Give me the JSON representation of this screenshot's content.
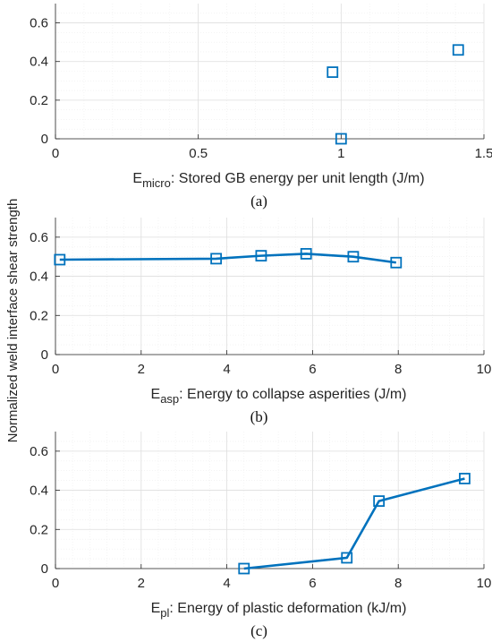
{
  "figure": {
    "shared_ylabel": "Normalized weld interface shear strength",
    "series_color": "#0072BD"
  },
  "chart_data": [
    {
      "type": "scatter",
      "panel_label": "(a)",
      "xlabel_main": "E",
      "xlabel_sub": "micro",
      "xlabel_rest": ": Stored GB energy per unit length (J/m)",
      "xlim": [
        0,
        1.5
      ],
      "ylim": [
        0,
        0.7
      ],
      "xticks": [
        0,
        0.5,
        1,
        1.5
      ],
      "xticklabels": [
        "0",
        "0.5",
        "1",
        "1.5"
      ],
      "yticks": [
        0,
        0.2,
        0.4,
        0.6
      ],
      "yticklabels": [
        "0",
        "0.2",
        "0.4",
        "0.6"
      ],
      "grid": true,
      "minor_grid": true,
      "connected": false,
      "x": [
        0.97,
        1.0,
        1.41
      ],
      "y": [
        0.345,
        0.0,
        0.46
      ]
    },
    {
      "type": "line",
      "panel_label": "(b)",
      "xlabel_main": "E",
      "xlabel_sub": "asp",
      "xlabel_rest": ": Energy to collapse asperities (J/m)",
      "xlim": [
        0,
        10
      ],
      "ylim": [
        0,
        0.7
      ],
      "xticks": [
        0,
        2,
        4,
        6,
        8,
        10
      ],
      "xticklabels": [
        "0",
        "2",
        "4",
        "6",
        "8",
        "10"
      ],
      "yticks": [
        0,
        0.2,
        0.4,
        0.6
      ],
      "yticklabels": [
        "0",
        "0.2",
        "0.4",
        "0.6"
      ],
      "grid": true,
      "minor_grid": true,
      "connected": true,
      "x": [
        0.1,
        3.75,
        4.8,
        5.85,
        6.95,
        7.95
      ],
      "y": [
        0.485,
        0.49,
        0.505,
        0.515,
        0.5,
        0.47
      ]
    },
    {
      "type": "line",
      "panel_label": "(c)",
      "xlabel_main": "E",
      "xlabel_sub": "pl",
      "xlabel_rest": ": Energy of plastic deformation (kJ/m)",
      "xlim": [
        0,
        10
      ],
      "ylim": [
        0,
        0.7
      ],
      "xticks": [
        0,
        2,
        4,
        6,
        8,
        10
      ],
      "xticklabels": [
        "0",
        "2",
        "4",
        "6",
        "8",
        "10"
      ],
      "yticks": [
        0,
        0.2,
        0.4,
        0.6
      ],
      "yticklabels": [
        "0",
        "0.2",
        "0.4",
        "0.6"
      ],
      "grid": true,
      "minor_grid": true,
      "connected": true,
      "x": [
        4.4,
        6.8,
        7.55,
        9.55
      ],
      "y": [
        0.0,
        0.055,
        0.345,
        0.46
      ]
    }
  ]
}
